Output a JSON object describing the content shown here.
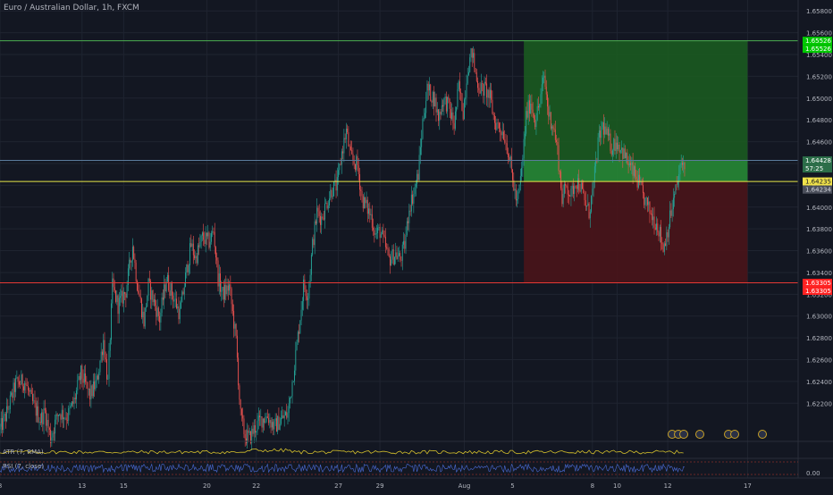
{
  "title": "Euro / Australian Dollar, 1h, FXCM",
  "chart_data": {
    "type": "candlestick",
    "symbol": "Euro / Australian Dollar",
    "interval": "1h",
    "source": "FXCM",
    "ylim": [
      1.6185,
      1.659
    ],
    "y_ticks": [
      "1.65800",
      "1.65600",
      "1.65400",
      "1.65200",
      "1.65000",
      "1.64800",
      "1.64600",
      "1.64400",
      "1.64200",
      "1.64000",
      "1.63800",
      "1.63600",
      "1.63400",
      "1.63200",
      "1.63000",
      "1.62800",
      "1.62600",
      "1.62400",
      "1.62200"
    ],
    "x_ticks": [
      "8",
      "13",
      "15",
      "20",
      "22",
      "27",
      "29",
      "Aug",
      "5",
      "8",
      "10",
      "12",
      "17"
    ],
    "x_tick_idx": [
      0,
      73,
      110,
      184,
      228,
      301,
      338,
      413,
      456,
      527,
      549,
      594,
      665
    ],
    "close_path": [
      [
        0,
        1.6196
      ],
      [
        5,
        1.6208
      ],
      [
        14,
        1.6238
      ],
      [
        22,
        1.624
      ],
      [
        28,
        1.6222
      ],
      [
        36,
        1.6205
      ],
      [
        40,
        1.6212
      ],
      [
        45,
        1.6188
      ],
      [
        52,
        1.6212
      ],
      [
        60,
        1.6208
      ],
      [
        66,
        1.6222
      ],
      [
        72,
        1.6247
      ],
      [
        80,
        1.6227
      ],
      [
        86,
        1.624
      ],
      [
        92,
        1.6278
      ],
      [
        96,
        1.6238
      ],
      [
        100,
        1.6327
      ],
      [
        105,
        1.631
      ],
      [
        112,
        1.6323
      ],
      [
        118,
        1.6365
      ],
      [
        122,
        1.633
      ],
      [
        128,
        1.6295
      ],
      [
        132,
        1.6328
      ],
      [
        138,
        1.631
      ],
      [
        142,
        1.6297
      ],
      [
        148,
        1.6335
      ],
      [
        154,
        1.6318
      ],
      [
        160,
        1.6302
      ],
      [
        166,
        1.6342
      ],
      [
        170,
        1.6365
      ],
      [
        174,
        1.6353
      ],
      [
        180,
        1.6372
      ],
      [
        186,
        1.6368
      ],
      [
        190,
        1.6378
      ],
      [
        194,
        1.6335
      ],
      [
        198,
        1.632
      ],
      [
        204,
        1.6327
      ],
      [
        210,
        1.6278
      ],
      [
        214,
        1.6208
      ],
      [
        218,
        1.619
      ],
      [
        222,
        1.6188
      ],
      [
        226,
        1.6196
      ],
      [
        232,
        1.6205
      ],
      [
        238,
        1.6208
      ],
      [
        244,
        1.6198
      ],
      [
        250,
        1.6205
      ],
      [
        256,
        1.621
      ],
      [
        260,
        1.624
      ],
      [
        266,
        1.629
      ],
      [
        270,
        1.6328
      ],
      [
        274,
        1.632
      ],
      [
        278,
        1.6365
      ],
      [
        282,
        1.6395
      ],
      [
        286,
        1.639
      ],
      [
        290,
        1.6402
      ],
      [
        295,
        1.6416
      ],
      [
        300,
        1.642
      ],
      [
        304,
        1.645
      ],
      [
        308,
        1.647
      ],
      [
        312,
        1.6445
      ],
      [
        318,
        1.6438
      ],
      [
        322,
        1.6408
      ],
      [
        326,
        1.64
      ],
      [
        330,
        1.6392
      ],
      [
        334,
        1.6375
      ],
      [
        338,
        1.6378
      ],
      [
        342,
        1.6366
      ],
      [
        346,
        1.6352
      ],
      [
        352,
        1.6357
      ],
      [
        356,
        1.6352
      ],
      [
        360,
        1.6365
      ],
      [
        364,
        1.64
      ],
      [
        368,
        1.6413
      ],
      [
        372,
        1.643
      ],
      [
        376,
        1.6478
      ],
      [
        380,
        1.6508
      ],
      [
        386,
        1.65
      ],
      [
        390,
        1.6482
      ],
      [
        394,
        1.6498
      ],
      [
        398,
        1.6495
      ],
      [
        404,
        1.6475
      ],
      [
        408,
        1.651
      ],
      [
        412,
        1.6488
      ],
      [
        416,
        1.6528
      ],
      [
        420,
        1.6542
      ],
      [
        424,
        1.6516
      ],
      [
        428,
        1.6508
      ],
      [
        432,
        1.6508
      ],
      [
        436,
        1.65
      ],
      [
        440,
        1.6478
      ],
      [
        444,
        1.6474
      ],
      [
        448,
        1.6468
      ],
      [
        452,
        1.6452
      ],
      [
        456,
        1.6425
      ],
      [
        460,
        1.6402
      ],
      [
        464,
        1.6433
      ],
      [
        468,
        1.6483
      ],
      [
        472,
        1.6497
      ],
      [
        476,
        1.648
      ],
      [
        480,
        1.6495
      ],
      [
        484,
        1.652
      ],
      [
        488,
        1.6485
      ],
      [
        492,
        1.6475
      ],
      [
        496,
        1.6452
      ],
      [
        500,
        1.6408
      ],
      [
        504,
        1.642
      ],
      [
        508,
        1.641
      ],
      [
        512,
        1.6425
      ],
      [
        516,
        1.642
      ],
      [
        520,
        1.6405
      ],
      [
        524,
        1.6395
      ],
      [
        528,
        1.642
      ],
      [
        532,
        1.6458
      ],
      [
        536,
        1.6475
      ],
      [
        540,
        1.6465
      ],
      [
        544,
        1.6455
      ],
      [
        548,
        1.646
      ],
      [
        552,
        1.6455
      ],
      [
        556,
        1.6446
      ],
      [
        560,
        1.6438
      ],
      [
        564,
        1.643
      ],
      [
        568,
        1.6422
      ],
      [
        572,
        1.641
      ],
      [
        576,
        1.64
      ],
      [
        580,
        1.6392
      ],
      [
        584,
        1.6385
      ],
      [
        586,
        1.638
      ],
      [
        590,
        1.6362
      ],
      [
        594,
        1.638
      ],
      [
        598,
        1.64
      ],
      [
        602,
        1.642
      ],
      [
        606,
        1.6438
      ],
      [
        609,
        1.6442
      ]
    ],
    "horizontal_levels": [
      {
        "role": "take-profit",
        "price": 1.65526,
        "color": "#4caf50"
      },
      {
        "role": "current",
        "price": 1.64428,
        "color": "#5b7b9c"
      },
      {
        "role": "entry",
        "price": 1.64235,
        "color": "#e8e84a"
      },
      {
        "role": "stop-loss",
        "price": 1.63305,
        "color": "#e53935"
      }
    ],
    "position": {
      "type": "long",
      "start_idx": 466,
      "end_idx": 665,
      "entry": 1.64235,
      "target": 1.65526,
      "stop": 1.63305,
      "current": 1.64428
    }
  },
  "price_labels": [
    {
      "text": "1.65526",
      "bg": "#00c800",
      "fg": "#ffffff",
      "price": 1.65526
    },
    {
      "text": "1.65526",
      "bg": "#00c800",
      "fg": "#ffffff",
      "price": 1.65526
    },
    {
      "text": "1.64428",
      "bg": "#2c6e49",
      "fg": "#ffffff",
      "price": 1.64428
    },
    {
      "text": "57:25",
      "bg": "#2c6e49",
      "fg": "#ffffff",
      "price": 1.64428
    },
    {
      "text": "1.64235",
      "bg": "#f1e34a",
      "fg": "#131722",
      "price": 1.64235
    },
    {
      "text": "1.64234",
      "bg": "#4a4e5a",
      "fg": "#d1d4dc",
      "price": 1.64234
    },
    {
      "text": "1.63305",
      "bg": "#ff2222",
      "fg": "#ffffff",
      "price": 1.63305
    },
    {
      "text": "1.63305",
      "bg": "#ff2222",
      "fg": "#ffffff",
      "price": 1.63305
    }
  ],
  "indicators": {
    "atr_label": "ATR (7, RMA)",
    "rsi_label": "RSI (7, close)",
    "atr_tick": "0.00",
    "atr_color": "#d4c02c",
    "rsi_color": "#4a6bd6"
  },
  "colors": {
    "bg": "#131722",
    "grid": "#1f2430",
    "up": "#26a69a",
    "down": "#ef5350",
    "profit_zone": "#1b5e20",
    "loss_zone": "#4a1419",
    "text": "#b2b5be"
  }
}
